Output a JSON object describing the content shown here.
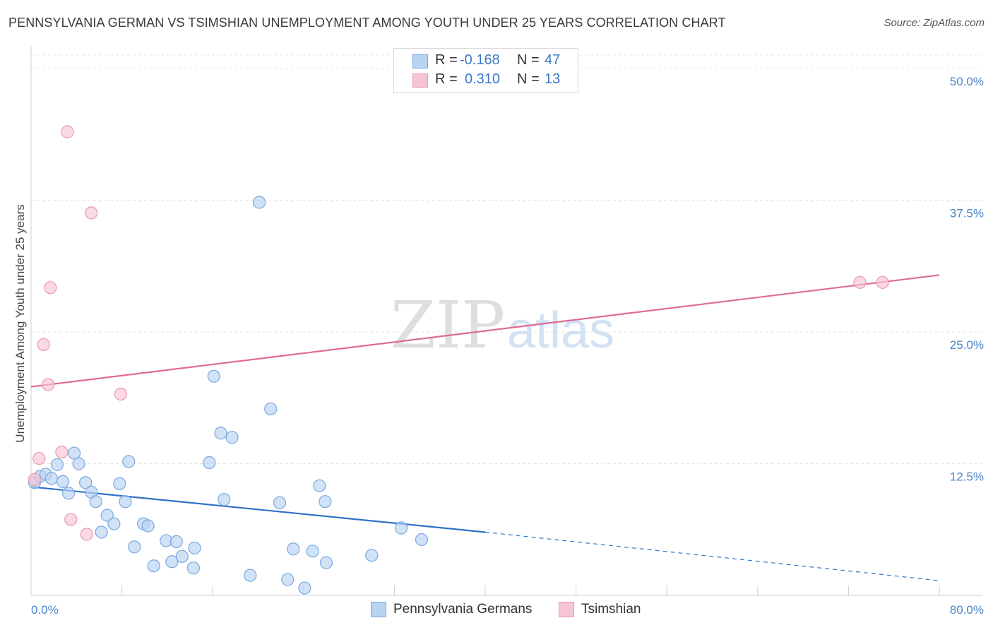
{
  "title": "PENNSYLVANIA GERMAN VS TSIMSHIAN UNEMPLOYMENT AMONG YOUTH UNDER 25 YEARS CORRELATION CHART",
  "source": "Source: ZipAtlas.com",
  "colors": {
    "blue_fill": "#b9d3f2",
    "blue_stroke": "#7aa8df",
    "blue_line": "#2f72c9",
    "pink_fill": "#f7c4d3",
    "pink_stroke": "#ea98b2",
    "pink_line": "#e06b94",
    "grid": "#e4e4e4",
    "tick_text": "#4a86c8"
  },
  "legend": {
    "rows": [
      {
        "r_label": "R =",
        "r_value": "-0.168",
        "n_label": "N =",
        "n_value": "47",
        "series": "blue"
      },
      {
        "r_label": "R =",
        "r_value": "0.310",
        "n_label": "N =",
        "n_value": "13",
        "series": "pink"
      }
    ]
  },
  "bottom_legend": [
    "Pennsylvania Germans",
    "Tsimshian"
  ],
  "watermark": {
    "zip": "ZIP",
    "atlas": "atlas"
  },
  "chart_data": {
    "type": "scatter",
    "title": "PENNSYLVANIA GERMAN VS TSIMSHIAN UNEMPLOYMENT AMONG YOUTH UNDER 25 YEARS CORRELATION CHART",
    "xlabel": "",
    "ylabel": "Unemployment Among Youth under 25 years",
    "xlim": [
      0,
      80
    ],
    "ylim": [
      0,
      50
    ],
    "x_tick_labels": [
      "0.0%",
      "80.0%"
    ],
    "y_tick_labels": [
      {
        "value": 12.5,
        "label": "12.5%"
      },
      {
        "value": 25,
        "label": "25.0%"
      },
      {
        "value": 37.5,
        "label": "37.5%"
      },
      {
        "value": 50,
        "label": "50.0%"
      }
    ],
    "series": [
      {
        "name": "Pennsylvania Germans",
        "color": "blue",
        "r": -0.168,
        "n": 47,
        "points": [
          [
            0.3,
            10.7
          ],
          [
            0.8,
            11.3
          ],
          [
            1.3,
            11.5
          ],
          [
            1.8,
            11.1
          ],
          [
            2.3,
            12.4
          ],
          [
            2.8,
            10.8
          ],
          [
            3.3,
            9.7
          ],
          [
            3.8,
            13.5
          ],
          [
            4.2,
            12.5
          ],
          [
            4.8,
            10.7
          ],
          [
            5.3,
            9.8
          ],
          [
            5.7,
            8.9
          ],
          [
            6.2,
            6.0
          ],
          [
            6.7,
            7.6
          ],
          [
            7.3,
            6.8
          ],
          [
            7.8,
            10.6
          ],
          [
            8.3,
            8.9
          ],
          [
            8.6,
            12.7
          ],
          [
            9.1,
            4.6
          ],
          [
            9.9,
            6.8
          ],
          [
            10.3,
            6.6
          ],
          [
            10.8,
            2.8
          ],
          [
            11.9,
            5.2
          ],
          [
            12.4,
            3.2
          ],
          [
            12.8,
            5.1
          ],
          [
            13.3,
            3.7
          ],
          [
            14.3,
            2.6
          ],
          [
            14.4,
            4.5
          ],
          [
            15.7,
            12.6
          ],
          [
            16.1,
            20.8
          ],
          [
            16.7,
            15.4
          ],
          [
            17.0,
            9.1
          ],
          [
            17.7,
            15.0
          ],
          [
            19.3,
            1.9
          ],
          [
            20.1,
            37.3
          ],
          [
            21.1,
            17.7
          ],
          [
            21.9,
            8.8
          ],
          [
            22.6,
            1.5
          ],
          [
            23.1,
            4.4
          ],
          [
            24.1,
            0.7
          ],
          [
            24.8,
            4.2
          ],
          [
            25.4,
            10.4
          ],
          [
            25.9,
            8.9
          ],
          [
            26.0,
            3.1
          ],
          [
            30.0,
            3.8
          ],
          [
            32.6,
            6.4
          ],
          [
            34.4,
            5.3
          ]
        ],
        "trend": {
          "x0": 0,
          "y0": 10.3,
          "x1": 40,
          "y1": 6.0,
          "dashed_to_x": 80,
          "dashed_to_y": 1.4
        }
      },
      {
        "name": "Tsimshian",
        "color": "pink",
        "r": 0.31,
        "n": 13,
        "points": [
          [
            0.3,
            11.0
          ],
          [
            0.7,
            13.0
          ],
          [
            1.1,
            23.8
          ],
          [
            1.5,
            20.0
          ],
          [
            1.7,
            29.2
          ],
          [
            2.7,
            13.6
          ],
          [
            3.2,
            44.0
          ],
          [
            3.5,
            7.2
          ],
          [
            4.9,
            5.8
          ],
          [
            5.3,
            36.3
          ],
          [
            7.9,
            19.1
          ],
          [
            73.0,
            29.7
          ],
          [
            75.0,
            29.7
          ]
        ],
        "trend": {
          "x0": 0,
          "y0": 19.8,
          "x1": 80,
          "y1": 30.4
        }
      }
    ]
  }
}
